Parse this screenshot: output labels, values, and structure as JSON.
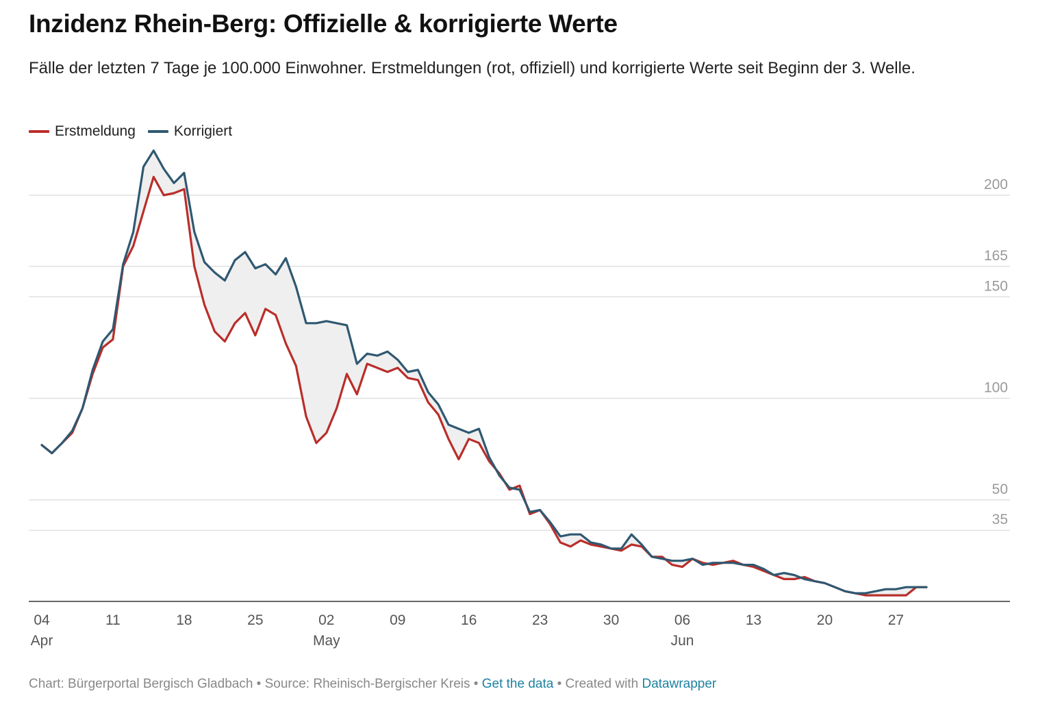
{
  "title": "Inzidenz Rhein-Berg: Offizielle & korrigierte Werte",
  "subtitle": "Fälle der letzten 7 Tage je 100.000 Einwohner. Erstmeldungen (rot, offiziell) und korrigierte Werte seit Beginn der 3. Welle.",
  "legend": [
    {
      "label": "Erstmeldung",
      "color": "#b92e2a"
    },
    {
      "label": "Korrigiert",
      "color": "#2f5871"
    }
  ],
  "footer": {
    "chart": "Chart: Bürgerportal Bergisch Gladbach",
    "source": "Source: Rheinisch-Bergischer Kreis",
    "get_data": "Get the data",
    "created": "Created with",
    "datawrapper": "Datawrapper",
    "sep": " • "
  },
  "chart_data": {
    "type": "line",
    "title": "Inzidenz Rhein-Berg: Offizielle & korrigierte Werte",
    "ylim": [
      0,
      220
    ],
    "y_ticks": [
      35,
      50,
      100,
      150,
      165,
      200
    ],
    "grid": true,
    "legend_position": "top-left",
    "x_start": "2021-04-04",
    "x_ticks": [
      {
        "date": "2021-04-04",
        "day": "04",
        "month": "Apr"
      },
      {
        "date": "2021-04-11",
        "day": "11",
        "month": ""
      },
      {
        "date": "2021-04-18",
        "day": "18",
        "month": ""
      },
      {
        "date": "2021-04-25",
        "day": "25",
        "month": ""
      },
      {
        "date": "2021-05-02",
        "day": "02",
        "month": "May"
      },
      {
        "date": "2021-05-09",
        "day": "09",
        "month": ""
      },
      {
        "date": "2021-05-16",
        "day": "16",
        "month": ""
      },
      {
        "date": "2021-05-23",
        "day": "23",
        "month": ""
      },
      {
        "date": "2021-05-30",
        "day": "30",
        "month": ""
      },
      {
        "date": "2021-06-06",
        "day": "06",
        "month": "Jun"
      },
      {
        "date": "2021-06-13",
        "day": "13",
        "month": ""
      },
      {
        "date": "2021-06-20",
        "day": "20",
        "month": ""
      },
      {
        "date": "2021-06-27",
        "day": "27",
        "month": ""
      }
    ],
    "series": [
      {
        "name": "Erstmeldung",
        "color": "#b92e2a",
        "values": [
          77,
          73,
          78,
          83,
          95,
          112,
          125,
          129,
          165,
          175,
          192,
          209,
          200,
          201,
          203,
          165,
          146,
          133,
          128,
          137,
          142,
          131,
          144,
          141,
          127,
          116,
          91,
          78,
          83,
          95,
          112,
          102,
          117,
          115,
          113,
          115,
          110,
          109,
          98,
          92,
          80,
          70,
          80,
          78,
          69,
          63,
          55,
          57,
          43,
          45,
          38,
          29,
          27,
          30,
          28,
          27,
          26,
          25,
          28,
          27,
          22,
          22,
          18,
          17,
          21,
          19,
          18,
          19,
          20,
          18,
          17,
          15,
          13,
          11,
          11,
          12,
          10,
          9,
          7,
          5,
          4,
          3,
          3,
          3,
          3,
          3,
          7,
          7
        ]
      },
      {
        "name": "Korrigiert",
        "color": "#2f5871",
        "values": [
          77,
          73,
          78,
          84,
          95,
          114,
          128,
          134,
          166,
          182,
          214,
          222,
          213,
          206,
          211,
          182,
          167,
          162,
          158,
          168,
          172,
          164,
          166,
          161,
          169,
          155,
          137,
          137,
          138,
          137,
          136,
          117,
          122,
          121,
          123,
          119,
          113,
          114,
          103,
          97,
          87,
          85,
          83,
          85,
          71,
          62,
          56,
          55,
          44,
          45,
          39,
          32,
          33,
          33,
          29,
          28,
          26,
          26,
          33,
          28,
          22,
          21,
          20,
          20,
          21,
          18,
          19,
          19,
          19,
          18,
          18,
          16,
          13,
          14,
          13,
          11,
          10,
          9,
          7,
          5,
          4,
          4,
          5,
          6,
          6,
          7,
          7,
          7
        ]
      }
    ]
  }
}
